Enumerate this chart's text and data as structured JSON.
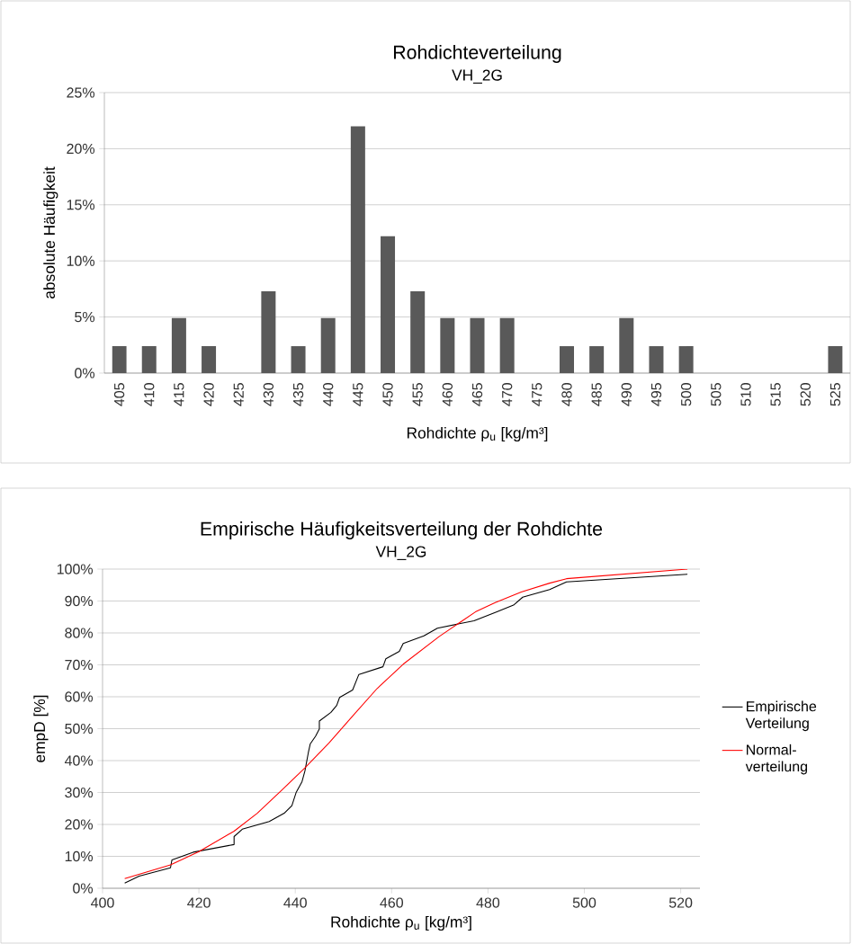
{
  "chart_data": [
    {
      "type": "bar",
      "title": "Rohdichteverteilung",
      "subtitle": "VH_2G",
      "xlabel": "Rohdichte ρ$_{u}$ [kg/m³]",
      "ylabel": "absolute Häufigkeit",
      "categories": [
        "405",
        "410",
        "415",
        "420",
        "425",
        "430",
        "435",
        "440",
        "445",
        "450",
        "455",
        "460",
        "465",
        "470",
        "475",
        "480",
        "485",
        "490",
        "495",
        "500",
        "505",
        "510",
        "515",
        "520",
        "525"
      ],
      "values": [
        2.4,
        2.4,
        4.9,
        2.4,
        0,
        7.3,
        2.4,
        4.9,
        22.0,
        12.2,
        7.3,
        4.9,
        4.9,
        4.9,
        0,
        2.4,
        2.4,
        4.9,
        2.4,
        2.4,
        0,
        0,
        0,
        0,
        2.4
      ],
      "color": "#595959",
      "ylim": [
        0,
        25
      ],
      "yticks": [
        {
          "value": 0,
          "label": "0%"
        },
        {
          "value": 5,
          "label": "5%"
        },
        {
          "value": 10,
          "label": "10%"
        },
        {
          "value": 15,
          "label": "15%"
        },
        {
          "value": 20,
          "label": "20%"
        },
        {
          "value": 25,
          "label": "25%"
        }
      ],
      "grid": "y"
    },
    {
      "type": "line",
      "title": "Empirische Häufigkeitsverteilung der Rohdichte",
      "subtitle": "VH_2G",
      "xlabel": "Rohdichte ρ$_{u}$ [kg/m³]",
      "ylabel": "empD [%]",
      "series": [
        {
          "name": "Empirische Verteilung",
          "color": "#000000",
          "x": [
            404.6,
            407.6,
            414.1,
            414.4,
            418.8,
            427.3,
            427.3,
            429.0,
            434.6,
            437.7,
            439.3,
            440.2,
            441.4,
            442.0,
            442.7,
            443.1,
            444.2,
            445.0,
            445.0,
            447.4,
            448.6,
            449.2,
            451.9,
            453.2,
            458.2,
            458.8,
            461.6,
            462.4,
            466.7,
            469.5,
            477.1,
            481.5,
            485.3,
            487.2,
            492.8,
            496.3,
            521.4
          ],
          "values": [
            1.6,
            3.8,
            6.4,
            8.9,
            11.3,
            13.7,
            16.2,
            18.5,
            20.9,
            23.5,
            25.9,
            30.1,
            33.4,
            36.7,
            42.4,
            45.2,
            47.6,
            49.9,
            52.4,
            55.1,
            57.3,
            59.8,
            62.1,
            67.0,
            69.4,
            71.9,
            74.2,
            76.7,
            79.1,
            81.5,
            83.8,
            86.4,
            88.7,
            91.2,
            93.6,
            96.0,
            98.4
          ]
        },
        {
          "name": "Normal-verteilung",
          "color": "#ff0000",
          "x": [
            404.6,
            414.1,
            420.0,
            427.3,
            432.1,
            437.1,
            442.0,
            447.0,
            452.0,
            457.0,
            462.4,
            469.9,
            477.4,
            481.5,
            486.9,
            492.8,
            496.3,
            521.4
          ],
          "values": [
            3.0,
            7.3,
            11.5,
            17.9,
            23.5,
            30.6,
            37.7,
            45.5,
            54.1,
            62.6,
            70.2,
            78.9,
            86.6,
            89.5,
            92.8,
            95.6,
            97.0,
            100.0
          ]
        }
      ],
      "xlim": [
        400,
        524
      ],
      "xticks": [
        400,
        420,
        440,
        460,
        480,
        500,
        520
      ],
      "ylim": [
        0,
        100
      ],
      "yticks": [
        {
          "value": 0,
          "label": "0%"
        },
        {
          "value": 10,
          "label": "10%"
        },
        {
          "value": 20,
          "label": "20%"
        },
        {
          "value": 30,
          "label": "30%"
        },
        {
          "value": 40,
          "label": "40%"
        },
        {
          "value": 50,
          "label": "50%"
        },
        {
          "value": 60,
          "label": "60%"
        },
        {
          "value": 70,
          "label": "70%"
        },
        {
          "value": 80,
          "label": "80%"
        },
        {
          "value": 90,
          "label": "90%"
        },
        {
          "value": 100,
          "label": "100%"
        }
      ],
      "grid": "y",
      "legend": "right"
    }
  ]
}
